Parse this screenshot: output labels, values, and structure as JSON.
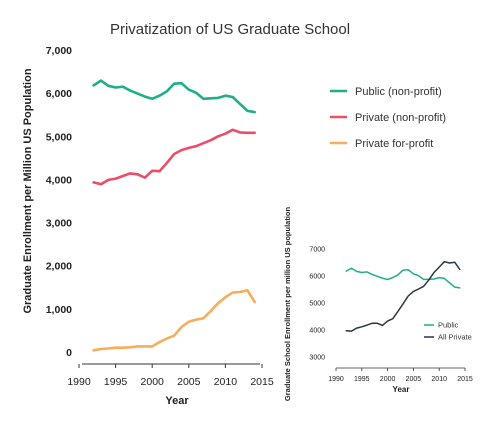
{
  "chart_data": [
    {
      "type": "line",
      "title": "Privatization of US Graduate School",
      "xlabel": "Year",
      "ylabel": "Graduate Enrollment per  Million US Population",
      "xlim": [
        1990,
        2015
      ],
      "ylim": [
        0,
        7000
      ],
      "xticks": [
        1990,
        1995,
        2000,
        2005,
        2010,
        2015
      ],
      "yticks": [
        0,
        1000,
        2000,
        3000,
        4000,
        5000,
        6000,
        7000
      ],
      "ytick_labels": [
        "0",
        "1,000",
        "2,000",
        "3,000",
        "4,000",
        "5,000",
        "6,000",
        "7,000"
      ],
      "grid": false,
      "legend": "right",
      "series": [
        {
          "name": "Public (non-profit)",
          "color": "#1fae8a",
          "x": [
            1992,
            1993,
            1994,
            1995,
            1996,
            1997,
            1998,
            1999,
            2000,
            2001,
            2002,
            2003,
            2004,
            2005,
            2006,
            2007,
            2008,
            2009,
            2010,
            2011,
            2012,
            2013,
            2014
          ],
          "y": [
            6180,
            6290,
            6170,
            6130,
            6150,
            6060,
            5990,
            5920,
            5870,
            5940,
            6040,
            6220,
            6230,
            6080,
            6010,
            5870,
            5880,
            5890,
            5940,
            5910,
            5750,
            5590,
            5560
          ]
        },
        {
          "name": "Private (non-profit)",
          "color": "#e8506a",
          "x": [
            1992,
            1993,
            1994,
            1995,
            1996,
            1997,
            1998,
            1999,
            2000,
            2001,
            2002,
            2003,
            2004,
            2005,
            2006,
            2007,
            2008,
            2009,
            2010,
            2011,
            2012,
            2013,
            2014
          ],
          "y": [
            3930,
            3890,
            3990,
            4020,
            4080,
            4140,
            4120,
            4040,
            4200,
            4190,
            4380,
            4590,
            4680,
            4730,
            4770,
            4840,
            4910,
            5000,
            5060,
            5150,
            5090,
            5080,
            5080
          ]
        },
        {
          "name": "Private for-profit",
          "color": "#f6ad5e",
          "x": [
            1992,
            1993,
            1994,
            1995,
            1996,
            1997,
            1998,
            1999,
            2000,
            2001,
            2002,
            2003,
            2004,
            2005,
            2006,
            2007,
            2008,
            2009,
            2010,
            2011,
            2012,
            2013,
            2014
          ],
          "y": [
            40,
            70,
            80,
            100,
            100,
            110,
            130,
            130,
            130,
            230,
            310,
            380,
            580,
            700,
            750,
            780,
            950,
            1130,
            1270,
            1380,
            1390,
            1430,
            1160
          ]
        }
      ]
    },
    {
      "type": "line",
      "title": "",
      "xlabel": "Year",
      "ylabel": "Graduate School Enrollment per million US population",
      "xlim": [
        1990,
        2015
      ],
      "ylim": [
        3000,
        7000
      ],
      "xticks": [
        1990,
        1995,
        2000,
        2005,
        2010,
        2015
      ],
      "yticks": [
        3000,
        4000,
        5000,
        6000,
        7000
      ],
      "grid": false,
      "legend": "bottom-right",
      "series": [
        {
          "name": "Public",
          "color": "#1fae8a",
          "x": [
            1992,
            1993,
            1994,
            1995,
            1996,
            1997,
            1998,
            1999,
            2000,
            2001,
            2002,
            2003,
            2004,
            2005,
            2006,
            2007,
            2008,
            2009,
            2010,
            2011,
            2012,
            2013,
            2014
          ],
          "y": [
            6180,
            6290,
            6170,
            6130,
            6150,
            6060,
            5990,
            5920,
            5870,
            5940,
            6040,
            6220,
            6230,
            6080,
            6010,
            5870,
            5880,
            5890,
            5940,
            5910,
            5750,
            5590,
            5560
          ]
        },
        {
          "name": "All Private",
          "color": "#2b3444",
          "x": [
            1992,
            1993,
            1994,
            1995,
            1996,
            1997,
            1998,
            1999,
            2000,
            2001,
            2002,
            2003,
            2004,
            2005,
            2006,
            2007,
            2008,
            2009,
            2010,
            2011,
            2012,
            2013,
            2014
          ],
          "y": [
            3970,
            3960,
            4070,
            4120,
            4180,
            4250,
            4250,
            4170,
            4330,
            4420,
            4690,
            4970,
            5260,
            5430,
            5520,
            5620,
            5860,
            6130,
            6330,
            6530,
            6480,
            6510,
            6240
          ]
        }
      ]
    }
  ]
}
